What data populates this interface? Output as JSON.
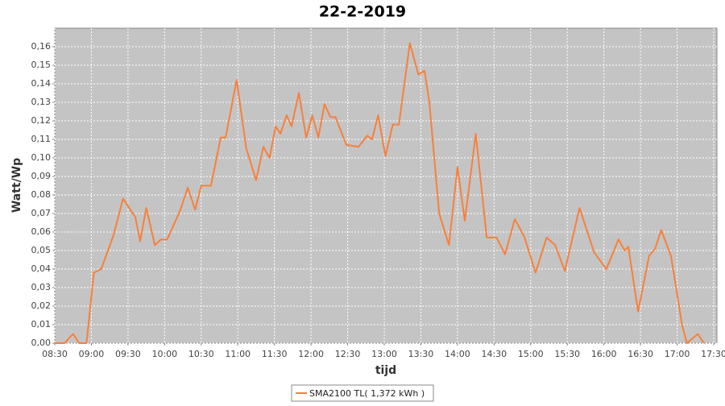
{
  "chart_data": {
    "type": "line",
    "title": "22-2-2019",
    "xlabel": "tijd",
    "ylabel": "Watt/Wp",
    "x": [
      "08:30",
      "08:38",
      "08:45",
      "08:50",
      "08:56",
      "09:02",
      "09:08",
      "09:18",
      "09:26",
      "09:32",
      "09:36",
      "09:40",
      "09:45",
      "09:52",
      "09:57",
      "10:02",
      "10:07",
      "10:13",
      "10:19",
      "10:25",
      "10:30",
      "10:38",
      "10:46",
      "10:50",
      "10:59",
      "11:07",
      "11:15",
      "11:21",
      "11:26",
      "11:31",
      "11:35",
      "11:40",
      "11:44",
      "11:50",
      "11:56",
      "12:01",
      "12:06",
      "12:11",
      "12:16",
      "12:20",
      "12:29",
      "12:39",
      "12:46",
      "12:50",
      "12:55",
      "13:01",
      "13:07",
      "13:12",
      "13:21",
      "13:28",
      "13:33",
      "13:37",
      "13:45",
      "13:53",
      "14:00",
      "14:06",
      "14:15",
      "14:24",
      "14:32",
      "14:39",
      "14:47",
      "14:55",
      "15:04",
      "15:13",
      "15:20",
      "15:28",
      "15:40",
      "15:52",
      "16:02",
      "16:12",
      "16:17",
      "16:20",
      "16:28",
      "16:37",
      "16:42",
      "16:47",
      "16:55",
      "17:04",
      "17:08",
      "17:17",
      "17:22"
    ],
    "series": [
      {
        "name": "SMA2100 TL( 1,372 kWh )",
        "color": "#f7803c",
        "values": [
          0,
          0,
          0.005,
          0,
          0,
          0.038,
          0.04,
          0.058,
          0.078,
          0.072,
          0.068,
          0.055,
          0.073,
          0.053,
          0.056,
          0.056,
          0.063,
          0.072,
          0.084,
          0.072,
          0.085,
          0.085,
          0.111,
          0.111,
          0.142,
          0.105,
          0.088,
          0.106,
          0.1,
          0.117,
          0.113,
          0.123,
          0.117,
          0.135,
          0.111,
          0.123,
          0.111,
          0.129,
          0.122,
          0.122,
          0.107,
          0.106,
          0.112,
          0.11,
          0.123,
          0.101,
          0.118,
          0.118,
          0.162,
          0.145,
          0.147,
          0.13,
          0.07,
          0.053,
          0.095,
          0.066,
          0.113,
          0.057,
          0.057,
          0.048,
          0.067,
          0.057,
          0.038,
          0.057,
          0.053,
          0.039,
          0.073,
          0.049,
          0.04,
          0.056,
          0.05,
          0.052,
          0.017,
          0.047,
          0.051,
          0.061,
          0.047,
          0.01,
          0,
          0.005,
          0
        ]
      }
    ],
    "xlim": [
      "08:30",
      "17:30"
    ],
    "xticks": [
      "08:30",
      "09:00",
      "09:30",
      "10:00",
      "10:30",
      "11:00",
      "11:30",
      "12:00",
      "12:30",
      "13:00",
      "13:30",
      "14:00",
      "14:30",
      "15:00",
      "15:30",
      "16:00",
      "16:30",
      "17:00",
      "17:30"
    ],
    "ylim": [
      0,
      0.17
    ],
    "yticks": [
      {
        "value": 0,
        "label": "0,00"
      },
      {
        "value": 0.01,
        "label": "0,01"
      },
      {
        "value": 0.02,
        "label": "0,02"
      },
      {
        "value": 0.03,
        "label": "0,03"
      },
      {
        "value": 0.04,
        "label": "0,04"
      },
      {
        "value": 0.05,
        "label": "0,05"
      },
      {
        "value": 0.06,
        "label": "0,06"
      },
      {
        "value": 0.07,
        "label": "0,07"
      },
      {
        "value": 0.08,
        "label": "0,08"
      },
      {
        "value": 0.09,
        "label": "0,09"
      },
      {
        "value": 0.1,
        "label": "0,10"
      },
      {
        "value": 0.11,
        "label": "0,11"
      },
      {
        "value": 0.12,
        "label": "0,12"
      },
      {
        "value": 0.13,
        "label": "0,13"
      },
      {
        "value": 0.14,
        "label": "0,14"
      },
      {
        "value": 0.15,
        "label": "0,15"
      },
      {
        "value": 0.16,
        "label": "0,16"
      }
    ],
    "grid": true,
    "legend": "bottom"
  }
}
